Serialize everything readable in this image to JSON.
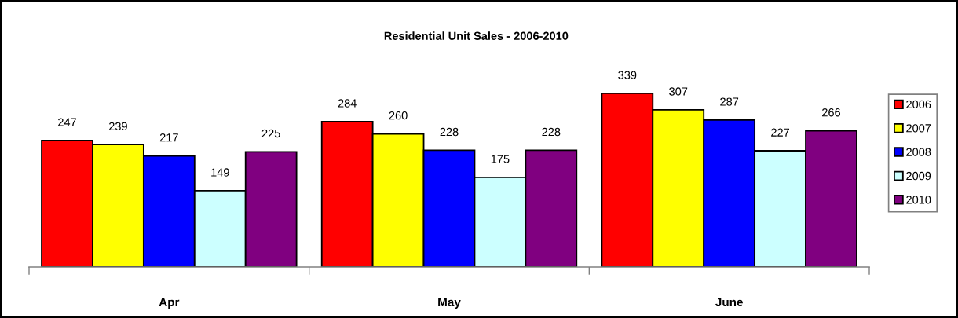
{
  "chart_data": {
    "type": "bar",
    "title": "Residential Unit Sales - 2006-2010",
    "categories": [
      "Apr",
      "May",
      "June"
    ],
    "series": [
      {
        "name": "2006",
        "color": "#ff0000",
        "values": [
          247,
          284,
          339
        ]
      },
      {
        "name": "2007",
        "color": "#ffff00",
        "values": [
          239,
          260,
          307
        ]
      },
      {
        "name": "2008",
        "color": "#0000ff",
        "values": [
          217,
          228,
          287
        ]
      },
      {
        "name": "2009",
        "color": "#ccffff",
        "values": [
          149,
          175,
          227
        ]
      },
      {
        "name": "2010",
        "color": "#800080",
        "values": [
          225,
          228,
          266
        ]
      }
    ],
    "data_labels": true,
    "legend": "right",
    "grid": false,
    "tick_labels": "x"
  }
}
